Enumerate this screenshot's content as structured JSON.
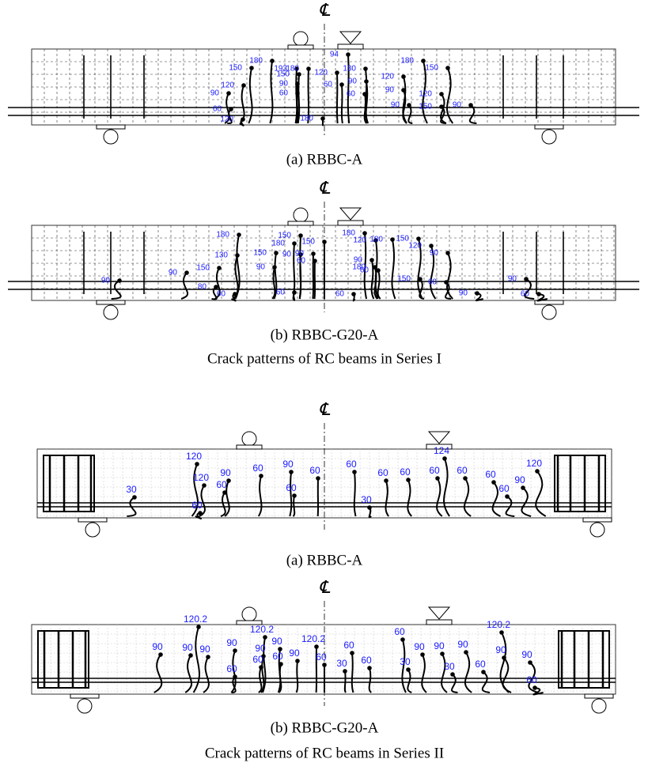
{
  "centerline_symbol": "℄",
  "beams": [
    {
      "caption": "(a) RBBC-A",
      "crack_labels": [
        193,
        180,
        150,
        120,
        90,
        180,
        150,
        90,
        60,
        120,
        60,
        180,
        60,
        120,
        94,
        180,
        120,
        180,
        150,
        90,
        60,
        90,
        90,
        120,
        150,
        90
      ]
    },
    {
      "caption": "(b) RBBC-G20-A",
      "crack_labels": [
        180,
        150,
        180,
        130,
        150,
        90,
        150,
        90,
        60,
        90,
        150,
        90,
        80,
        60,
        60,
        180,
        120,
        180,
        150,
        120,
        90,
        90,
        60,
        180,
        150,
        60,
        60,
        90,
        90,
        60,
        90
      ]
    },
    {
      "caption": "(a) RBBC-A",
      "crack_labels": [
        120,
        120,
        90,
        60,
        60,
        90,
        60,
        60,
        60,
        60,
        60,
        60,
        60,
        60,
        90,
        60,
        120,
        124,
        30,
        60,
        30
      ]
    },
    {
      "caption": "(b) RBBC-G20-A",
      "crack_labels": [
        120.2,
        90,
        90,
        90,
        90,
        60,
        120.2,
        90,
        90,
        60,
        60,
        90,
        120.2,
        60,
        60,
        30,
        60,
        60,
        30,
        90,
        90,
        30,
        90,
        60,
        120.2,
        90,
        90,
        60
      ]
    }
  ],
  "series_captions": [
    "Crack patterns of RC beams in Series I",
    "Crack patterns of RC beams in Series II"
  ]
}
